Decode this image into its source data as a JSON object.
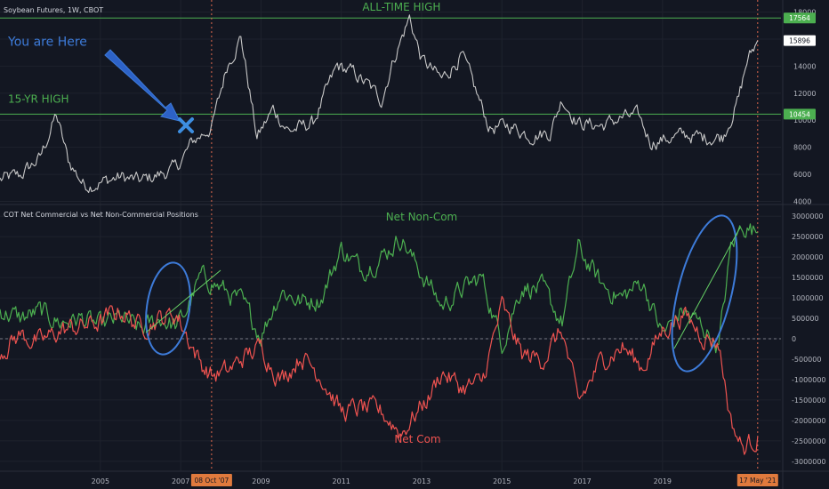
{
  "header": {
    "price_title": "Soybean Futures, 1W, CBOT",
    "cot_title": "COT Net Commercial vs Net Non-Commercial Positions"
  },
  "colors": {
    "background": "#131722",
    "price_line": "#c8c8c8",
    "non_com": "#4caf50",
    "net_com": "#ef5350",
    "hline": "#4caf50",
    "annotation_blue": "#3d7bd9",
    "marker_vline": "#e0694d",
    "grid": "#1e222d",
    "axis_text": "#b2b5be"
  },
  "chart_data": [
    {
      "type": "line",
      "name": "price",
      "x": [
        2002.5,
        2003.0,
        2003.5,
        2003.9,
        2004.2,
        2004.6,
        2005.0,
        2005.5,
        2006.0,
        2006.5,
        2006.9,
        2007.3,
        2007.77,
        2007.95,
        2008.15,
        2008.5,
        2008.9,
        2009.3,
        2009.7,
        2010.3,
        2010.9,
        2011.3,
        2011.7,
        2012.0,
        2012.3,
        2012.7,
        2013.0,
        2013.5,
        2014.0,
        2014.3,
        2014.7,
        2015.2,
        2015.7,
        2016.2,
        2016.5,
        2016.9,
        2017.5,
        2018.0,
        2018.4,
        2018.7,
        2019.2,
        2019.6,
        2020.0,
        2020.5,
        2020.9,
        2021.1,
        2021.37
      ],
      "y": [
        5600,
        5900,
        7200,
        10400,
        7000,
        5200,
        5400,
        5800,
        5500,
        6000,
        6500,
        8400,
        9500,
        11500,
        14000,
        16200,
        8700,
        10800,
        9200,
        9800,
        14000,
        13500,
        12500,
        11500,
        14500,
        17600,
        14500,
        13000,
        14800,
        12500,
        9400,
        9600,
        8900,
        9100,
        11600,
        9800,
        9600,
        10200,
        10300,
        8400,
        8700,
        8900,
        8700,
        8800,
        11600,
        14300,
        15896
      ],
      "xlim": [
        2002.5,
        2021.95
      ],
      "ylim": [
        3900,
        18500
      ],
      "y_ticks": [
        "4000",
        "6000",
        "8000",
        "10000",
        "12000",
        "14000",
        "16000",
        "18000"
      ],
      "hlines": [
        {
          "value": 17564,
          "label": "17564"
        },
        {
          "value": 10454,
          "label": "10454"
        }
      ],
      "last_value_label": "15896",
      "annotations": [
        {
          "text": "ALL-TIME HIGH",
          "x": 2012.5,
          "y": 18100
        },
        {
          "text": "15-YR HIGH",
          "x": 2002.7,
          "y": 11300
        },
        {
          "text": "You are Here",
          "x": 2002.7,
          "y": 15500
        }
      ]
    },
    {
      "type": "line",
      "name": "cot",
      "x": [
        2002.5,
        2003.0,
        2003.5,
        2004.0,
        2004.5,
        2005.0,
        2005.5,
        2006.0,
        2006.5,
        2006.9,
        2007.1,
        2007.5,
        2007.77,
        2008.2,
        2008.5,
        2009.0,
        2009.5,
        2010.0,
        2010.5,
        2011.0,
        2011.5,
        2012.0,
        2012.5,
        2012.8,
        2013.2,
        2013.5,
        2014.0,
        2014.5,
        2015.0,
        2015.5,
        2016.0,
        2016.5,
        2016.9,
        2017.5,
        2018.0,
        2018.5,
        2019.0,
        2019.5,
        2020.0,
        2020.4,
        2020.7,
        2021.0,
        2021.37
      ],
      "series": [
        {
          "name": "Net Non-Com",
          "values": [
            700000,
            500000,
            650000,
            400000,
            500000,
            300000,
            500000,
            200000,
            500000,
            300000,
            600000,
            1500000,
            1400000,
            1100000,
            900000,
            100000,
            1200000,
            900000,
            1000000,
            2200000,
            1700000,
            2000000,
            2500000,
            1900000,
            1300000,
            800000,
            1200000,
            1500000,
            -100000,
            1300000,
            1200000,
            400000,
            2200000,
            1300000,
            1000000,
            1400000,
            100000,
            700000,
            300000,
            -200000,
            2200000,
            2800000,
            2600000
          ]
        },
        {
          "name": "Net Com",
          "values": [
            -300000,
            100000,
            -100000,
            200000,
            300000,
            400000,
            700000,
            300000,
            500000,
            600000,
            200000,
            -600000,
            -900000,
            -800000,
            -500000,
            -200000,
            -1000000,
            -400000,
            -900000,
            -1800000,
            -1700000,
            -1800000,
            -2300000,
            -1900000,
            -1400000,
            -800000,
            -1200000,
            -1100000,
            800000,
            -400000,
            -500000,
            200000,
            -1600000,
            -500000,
            -200000,
            -700000,
            200000,
            600000,
            100000,
            -100000,
            -2000000,
            -2700000,
            -2400000
          ]
        }
      ],
      "xlim": [
        2002.5,
        2021.95
      ],
      "ylim": [
        -3200000,
        3200000
      ],
      "y_ticks": [
        "3000000",
        "2500000",
        "2000000",
        "1500000",
        "1000000",
        "500000",
        "0",
        "-500000",
        "-1000000",
        "-1500000",
        "-2000000",
        "-2500000",
        "-3000000"
      ],
      "annotations": [
        {
          "text": "Net Non-Com",
          "x": 2013.0,
          "y": 2900000
        },
        {
          "text": "Net Com",
          "x": 2012.9,
          "y": -2550000
        }
      ],
      "x_ticks": [
        "2005",
        "2007",
        "2009",
        "2011",
        "2013",
        "2015",
        "2017",
        "2019"
      ],
      "x_markers": [
        {
          "value": 2007.77,
          "label": "08 Oct '07"
        },
        {
          "value": 2021.37,
          "label": "17 May '21"
        }
      ]
    }
  ]
}
